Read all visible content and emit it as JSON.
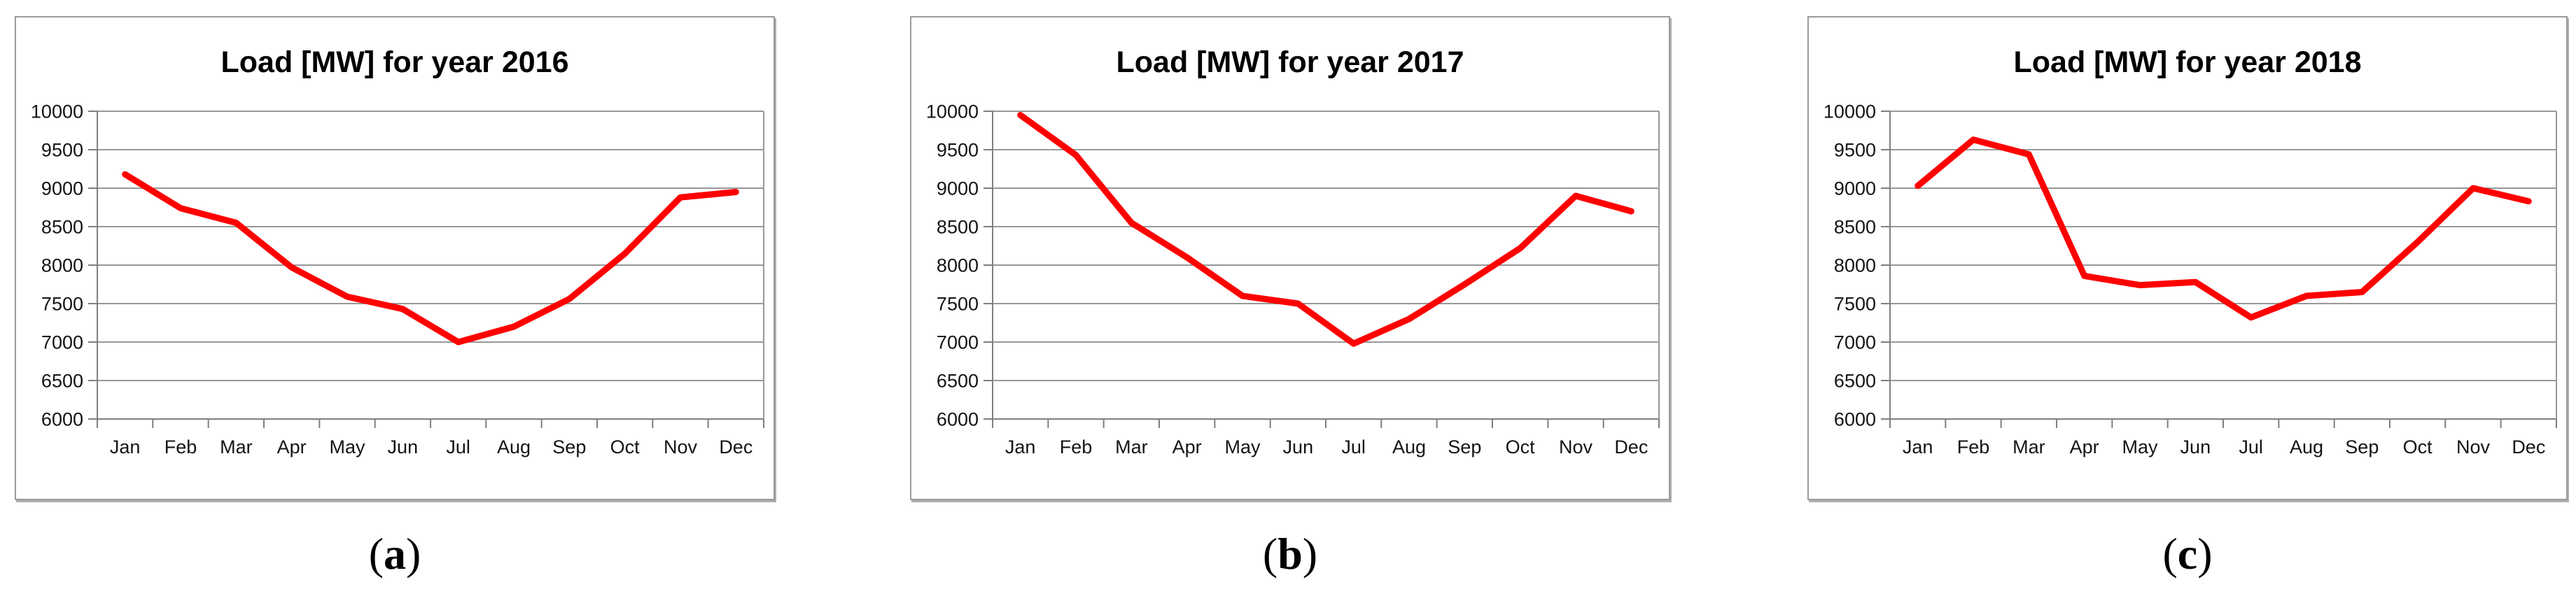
{
  "figure": {
    "captions": [
      {
        "open": "(",
        "letter": "a",
        "close": ")"
      },
      {
        "open": "(",
        "letter": "b",
        "close": ")"
      },
      {
        "open": "(",
        "letter": "c",
        "close": ")"
      }
    ]
  },
  "chart_data": [
    {
      "type": "line",
      "title": "Load [MW] for year 2016",
      "xlabel": "",
      "ylabel": "",
      "categories": [
        "Jan",
        "Feb",
        "Mar",
        "Apr",
        "May",
        "Jun",
        "Jul",
        "Aug",
        "Sep",
        "Oct",
        "Nov",
        "Dec"
      ],
      "values": [
        9180,
        8740,
        8550,
        7970,
        7590,
        7430,
        7000,
        7200,
        7560,
        8150,
        8880,
        8950
      ],
      "ylim": [
        6000,
        10000
      ],
      "y_tick_step": 500,
      "y_tick_labels": [
        "10000",
        "9500",
        "9000",
        "8500",
        "8000",
        "7500",
        "7000",
        "6500",
        "6000"
      ],
      "line_color": "#fe0000",
      "grid": true,
      "legend_position": "none"
    },
    {
      "type": "line",
      "title": "Load [MW] for year 2017",
      "xlabel": "",
      "ylabel": "",
      "categories": [
        "Jan",
        "Feb",
        "Mar",
        "Apr",
        "May",
        "Jun",
        "Jul",
        "Aug",
        "Sep",
        "Oct",
        "Nov",
        "Dec"
      ],
      "values": [
        9950,
        9430,
        8550,
        8100,
        7600,
        7500,
        6980,
        7300,
        7750,
        8220,
        8900,
        8700
      ],
      "ylim": [
        6000,
        10000
      ],
      "y_tick_step": 500,
      "y_tick_labels": [
        "10000",
        "9500",
        "9000",
        "8500",
        "8000",
        "7500",
        "7000",
        "6500",
        "6000"
      ],
      "line_color": "#fe0000",
      "grid": true,
      "legend_position": "none"
    },
    {
      "type": "line",
      "title": "Load [MW] for year 2018",
      "xlabel": "",
      "ylabel": "",
      "categories": [
        "Jan",
        "Feb",
        "Mar",
        "Apr",
        "May",
        "Jun",
        "Jul",
        "Aug",
        "Sep",
        "Oct",
        "Nov",
        "Dec"
      ],
      "values": [
        9030,
        9630,
        9440,
        7860,
        7740,
        7780,
        7320,
        7600,
        7650,
        8300,
        9000,
        8830
      ],
      "ylim": [
        6000,
        10000
      ],
      "y_tick_step": 500,
      "y_tick_labels": [
        "10000",
        "9500",
        "9000",
        "8500",
        "8000",
        "7500",
        "7000",
        "6500",
        "6000"
      ],
      "line_color": "#fe0000",
      "grid": true,
      "legend_position": "none"
    }
  ]
}
